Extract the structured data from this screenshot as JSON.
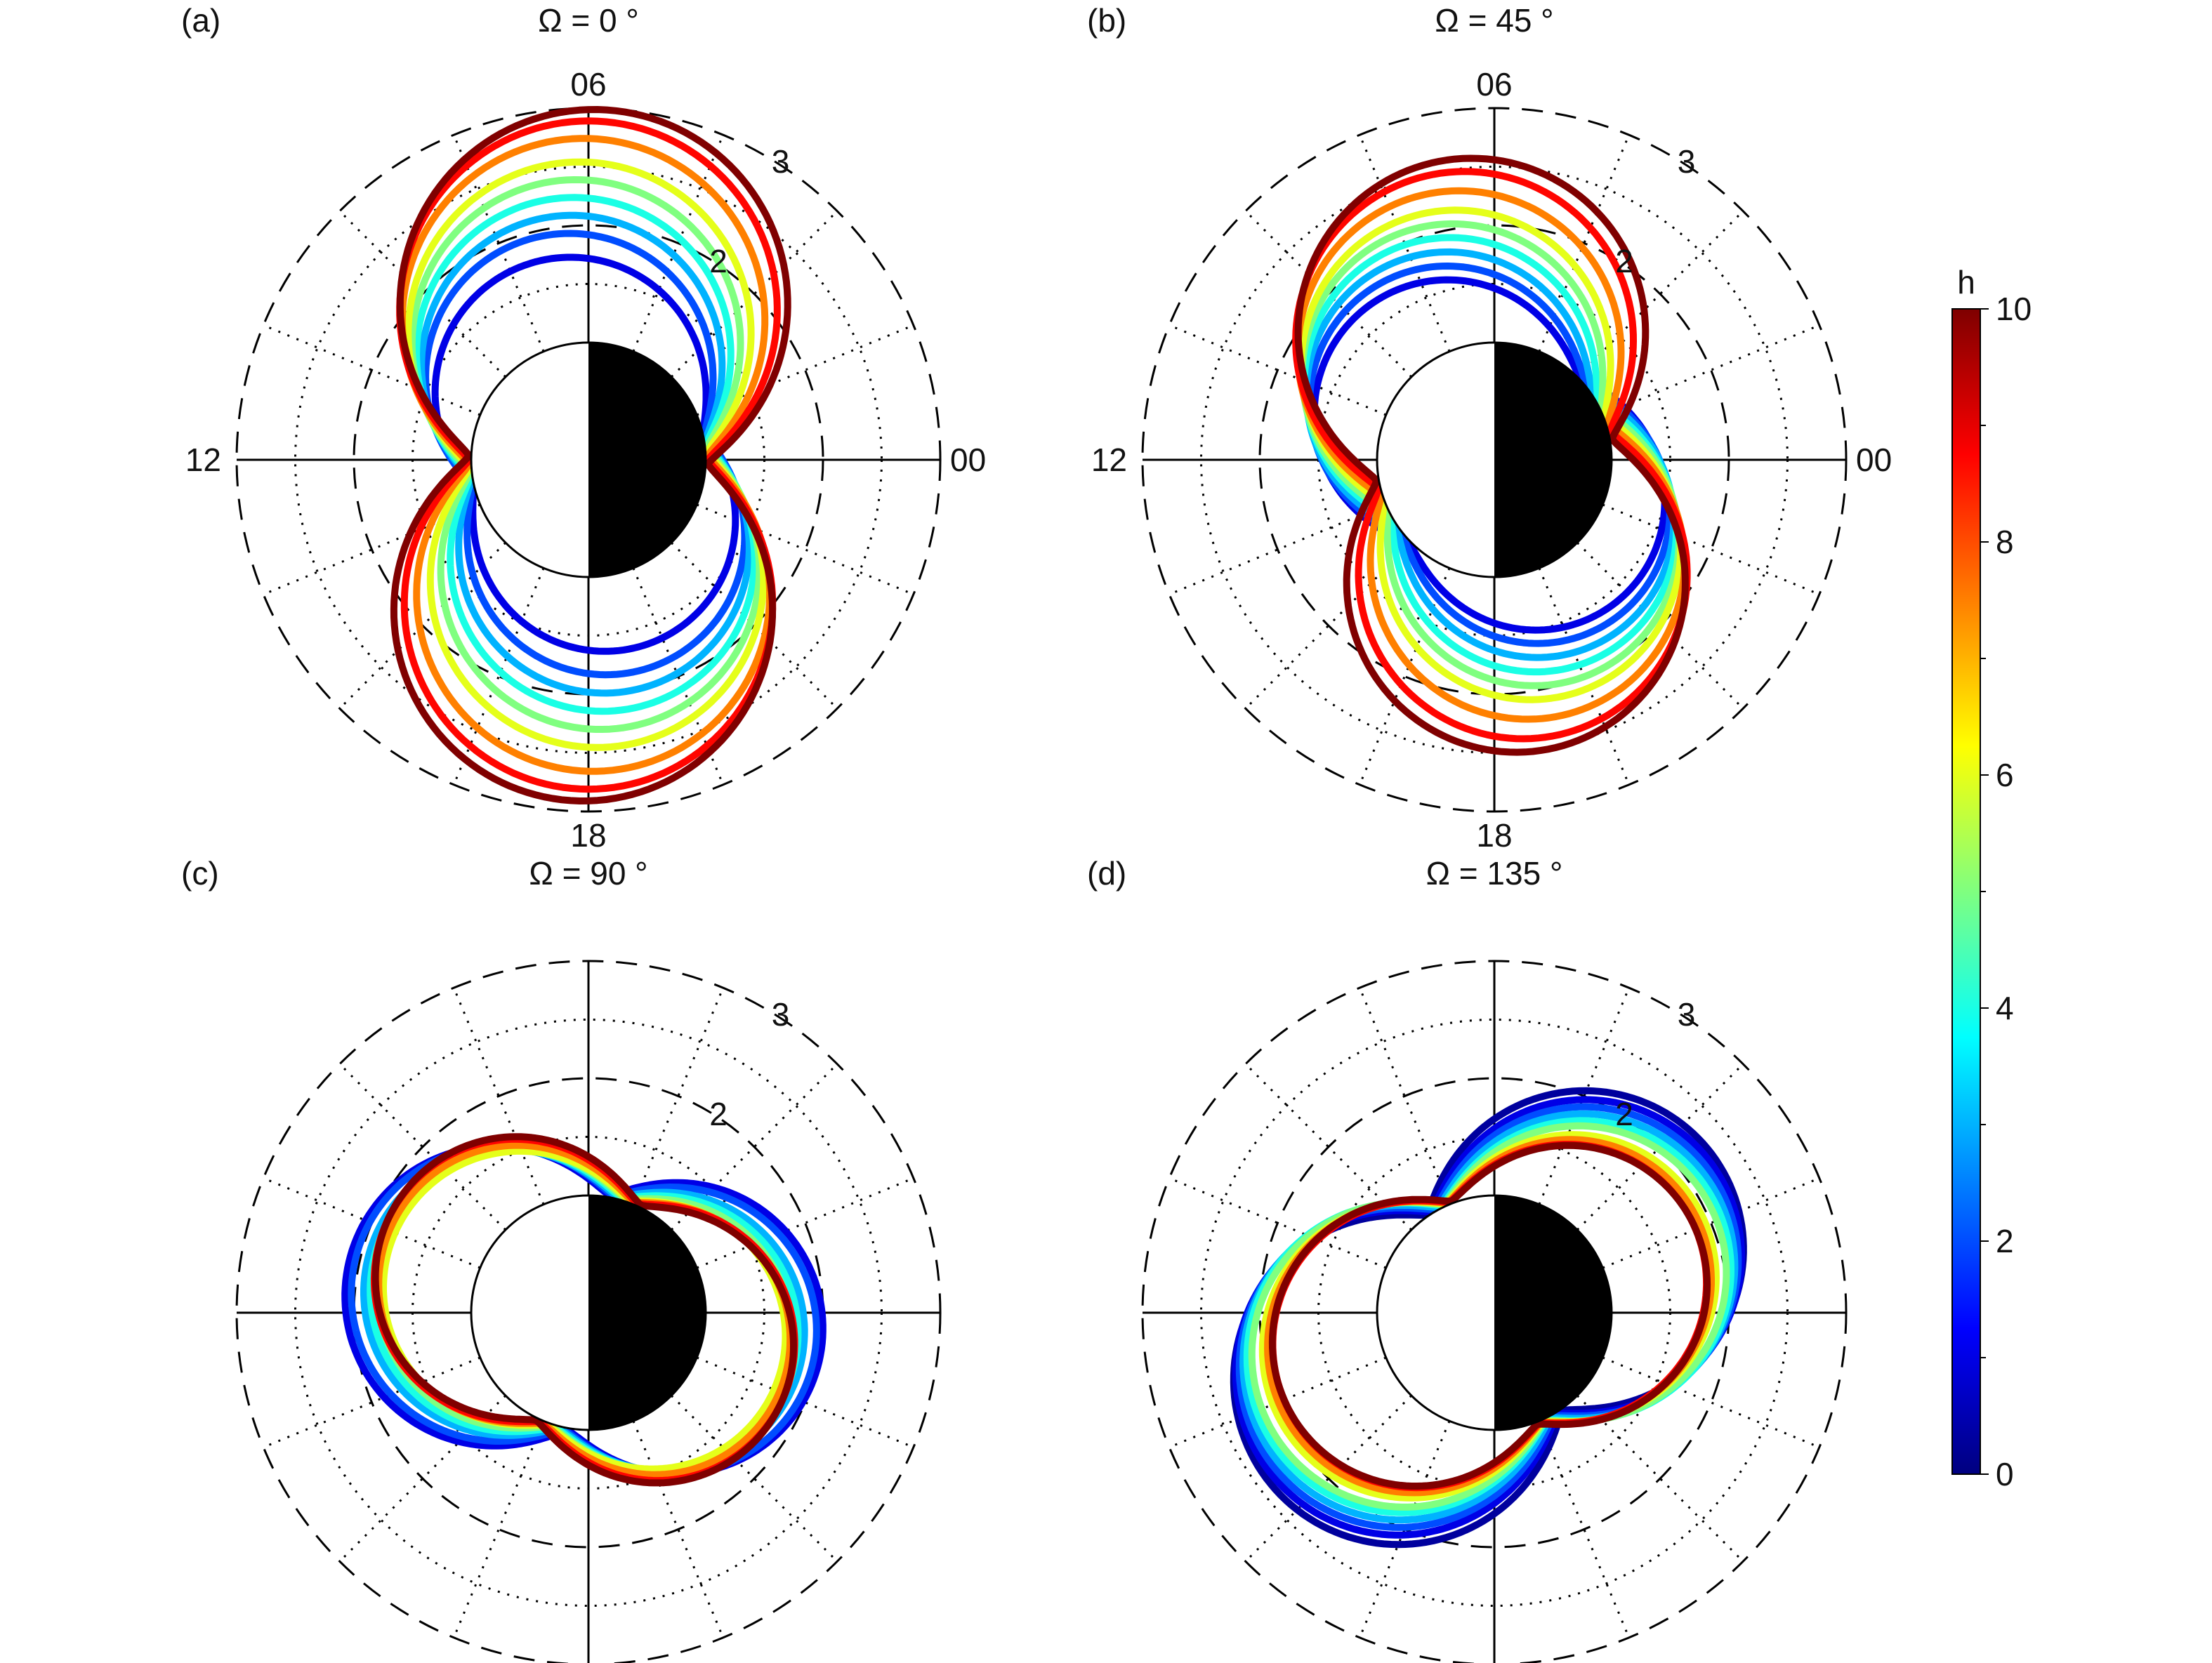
{
  "colorbar": {
    "title": "h",
    "min": 0,
    "max": 10,
    "ticks": [
      "0",
      "2",
      "4",
      "6",
      "8",
      "10"
    ],
    "colormap": "jet"
  },
  "chart_data": [
    {
      "type": "polar",
      "panel_label": "(a)",
      "title": "Ω = 0 °",
      "angle_labels": {
        "top": "06",
        "left": "12",
        "right": "00",
        "bottom": "18"
      },
      "ring_labels": [
        "2",
        "3"
      ],
      "rlim": [
        0,
        3
      ],
      "inner_radius": 1,
      "series": [
        {
          "h": 1,
          "rmax": 1.7,
          "phase_deg": 105,
          "amp": 0.32
        },
        {
          "h": 2,
          "rmax": 1.9,
          "phase_deg": 103,
          "amp": 0.33
        },
        {
          "h": 3,
          "rmax": 2.05,
          "phase_deg": 100,
          "amp": 0.32
        },
        {
          "h": 4,
          "rmax": 2.2,
          "phase_deg": 98,
          "amp": 0.31
        },
        {
          "h": 5,
          "rmax": 2.35,
          "phase_deg": 96,
          "amp": 0.3
        },
        {
          "h": 6,
          "rmax": 2.5,
          "phase_deg": 94,
          "amp": 0.29
        },
        {
          "h": 7.5,
          "rmax": 2.7,
          "phase_deg": 92,
          "amp": 0.28
        },
        {
          "h": 8.7,
          "rmax": 2.85,
          "phase_deg": 90,
          "amp": 0.27
        },
        {
          "h": 10,
          "rmax": 2.95,
          "phase_deg": 88,
          "amp": 0.26
        }
      ]
    },
    {
      "type": "polar",
      "panel_label": "(b)",
      "title": "Ω = 45 °",
      "angle_labels": {
        "top": "06",
        "left": "12",
        "right": "00",
        "bottom": "18"
      },
      "ring_labels": [
        "2",
        "3"
      ],
      "rlim": [
        0,
        3
      ],
      "inner_radius": 1,
      "series": [
        {
          "h": 1,
          "rmax": 1.65,
          "phase_deg": 135,
          "amp": 0.33
        },
        {
          "h": 2,
          "rmax": 1.75,
          "phase_deg": 130,
          "amp": 0.33
        },
        {
          "h": 3,
          "rmax": 1.85,
          "phase_deg": 125,
          "amp": 0.32
        },
        {
          "h": 4,
          "rmax": 1.95,
          "phase_deg": 120,
          "amp": 0.31
        },
        {
          "h": 5,
          "rmax": 2.05,
          "phase_deg": 116,
          "amp": 0.3
        },
        {
          "h": 6,
          "rmax": 2.15,
          "phase_deg": 112,
          "amp": 0.29
        },
        {
          "h": 7.5,
          "rmax": 2.3,
          "phase_deg": 108,
          "amp": 0.28
        },
        {
          "h": 8.7,
          "rmax": 2.45,
          "phase_deg": 104,
          "amp": 0.27
        },
        {
          "h": 10,
          "rmax": 2.55,
          "phase_deg": 100,
          "amp": 0.26
        }
      ]
    },
    {
      "type": "polar",
      "panel_label": "(c)",
      "title": "Ω = 90 °",
      "angle_labels": {
        "top": "",
        "left": "",
        "right": "",
        "bottom": ""
      },
      "ring_labels": [
        "2",
        "3"
      ],
      "rlim": [
        0,
        3
      ],
      "inner_radius": 1,
      "series": [
        {
          "h": 1,
          "rmax": 2.05,
          "phase_deg": 170,
          "amp": 0.26
        },
        {
          "h": 2,
          "rmax": 2.0,
          "phase_deg": 168,
          "amp": 0.26
        },
        {
          "h": 3,
          "rmax": 1.9,
          "phase_deg": 166,
          "amp": 0.25
        },
        {
          "h": 4,
          "rmax": 1.85,
          "phase_deg": 164,
          "amp": 0.25
        },
        {
          "h": 5,
          "rmax": 1.8,
          "phase_deg": 162,
          "amp": 0.24
        },
        {
          "h": 6,
          "rmax": 1.75,
          "phase_deg": 160,
          "amp": 0.24
        },
        {
          "h": 7.5,
          "rmax": 1.8,
          "phase_deg": 158,
          "amp": 0.24
        },
        {
          "h": 8.7,
          "rmax": 1.85,
          "phase_deg": 156,
          "amp": 0.24
        },
        {
          "h": 10,
          "rmax": 1.85,
          "phase_deg": 154,
          "amp": 0.24
        }
      ]
    },
    {
      "type": "polar",
      "panel_label": "(d)",
      "title": "Ω = 135 °",
      "angle_labels": {
        "top": "",
        "left": "",
        "right": "",
        "bottom": ""
      },
      "ring_labels": [
        "2",
        "3"
      ],
      "rlim": [
        0,
        3
      ],
      "inner_radius": 1,
      "series": [
        {
          "h": 0.3,
          "rmax": 2.35,
          "phase_deg": 215,
          "amp": 0.36
        },
        {
          "h": 1,
          "rmax": 2.3,
          "phase_deg": 212,
          "amp": 0.35
        },
        {
          "h": 2,
          "rmax": 2.25,
          "phase_deg": 210,
          "amp": 0.34
        },
        {
          "h": 3,
          "rmax": 2.2,
          "phase_deg": 208,
          "amp": 0.33
        },
        {
          "h": 4,
          "rmax": 2.15,
          "phase_deg": 206,
          "amp": 0.32
        },
        {
          "h": 5,
          "rmax": 2.1,
          "phase_deg": 205,
          "amp": 0.31
        },
        {
          "h": 6,
          "rmax": 2.0,
          "phase_deg": 204,
          "amp": 0.3
        },
        {
          "h": 7.5,
          "rmax": 1.95,
          "phase_deg": 203,
          "amp": 0.29
        },
        {
          "h": 8.7,
          "rmax": 1.9,
          "phase_deg": 202,
          "amp": 0.28
        },
        {
          "h": 10,
          "rmax": 1.9,
          "phase_deg": 201,
          "amp": 0.27
        }
      ]
    }
  ]
}
